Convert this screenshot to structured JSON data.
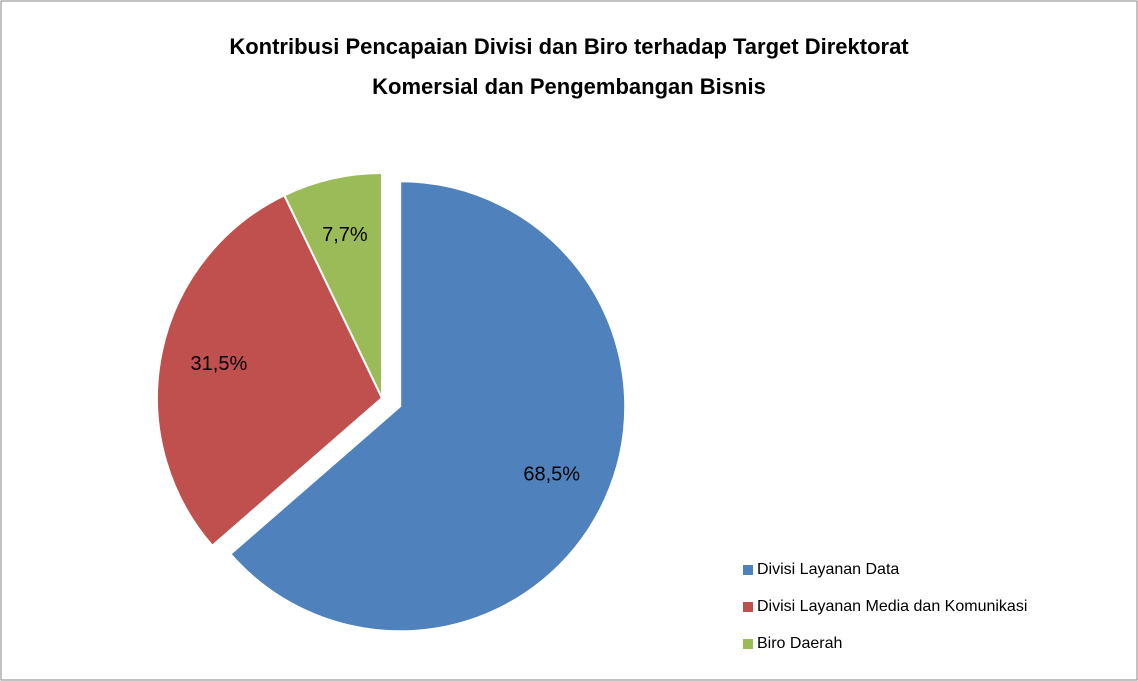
{
  "chart_data": {
    "type": "pie",
    "title": "Kontribusi Pencapaian Divisi dan Biro terhadap Target Direktorat",
    "subtitle": "Komersial dan Pengembangan Bisnis",
    "categories": [
      "Divisi Layanan Data",
      "Divisi Layanan Media dan Komunikasi",
      "Biro Daerah"
    ],
    "values": [
      68.5,
      31.5,
      7.7
    ],
    "value_labels": [
      "68,5%",
      "31,5%",
      "7,7%"
    ],
    "colors": [
      "#4f81bd",
      "#c0504d",
      "#9bbb59"
    ],
    "exploded": [
      true,
      false,
      false
    ],
    "legend": "bottom-right"
  }
}
